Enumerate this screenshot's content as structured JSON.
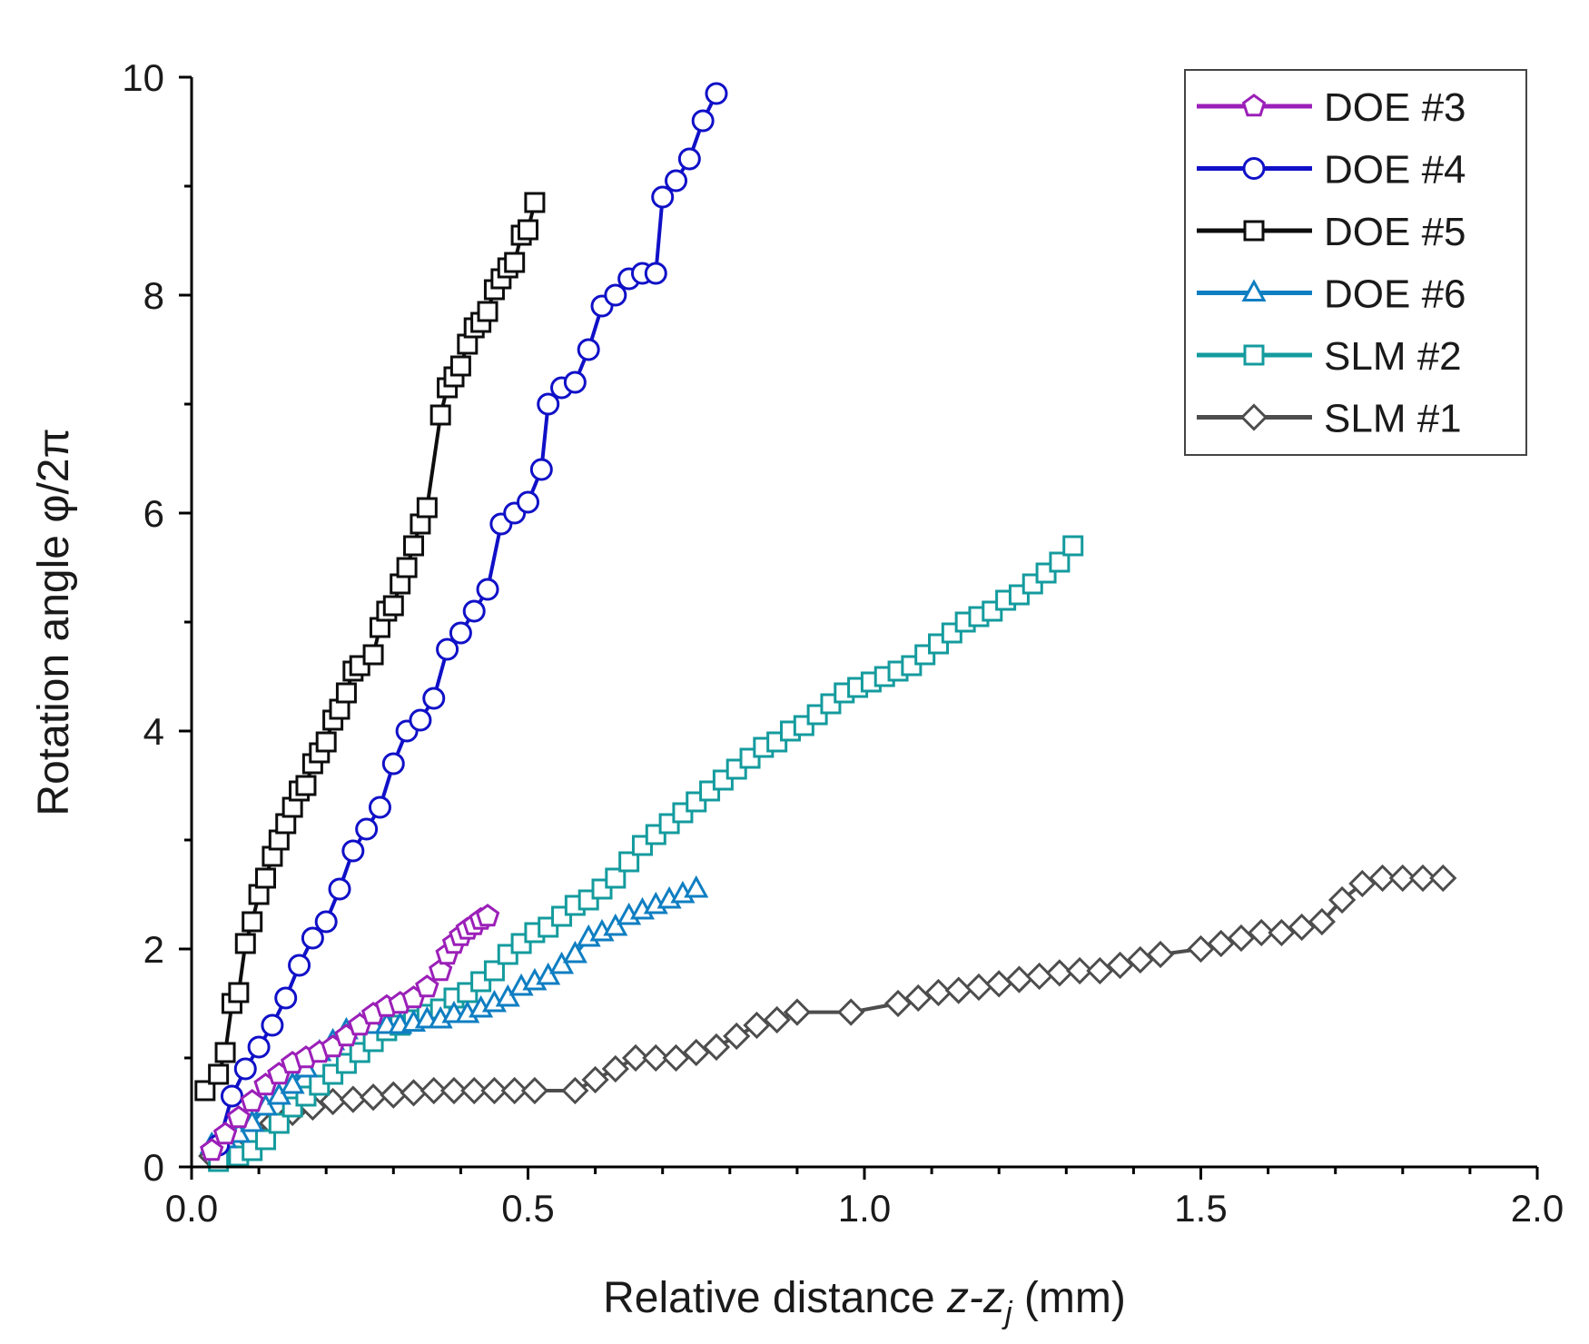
{
  "chart_data": {
    "type": "line",
    "title": "",
    "xlabel": "Relative distance z-z_j (mm)",
    "xlabel_parts": {
      "prefix": "Relative distance ",
      "italic": "z-z",
      "subscript": "j",
      "suffix": " (mm)"
    },
    "ylabel": "Rotation angle φ/2π",
    "xlim": [
      0,
      2.0
    ],
    "ylim": [
      0,
      10
    ],
    "x_ticks": [
      "0.0",
      "0.5",
      "1.0",
      "1.5",
      "2.0"
    ],
    "y_ticks": [
      "0",
      "2",
      "4",
      "6",
      "8",
      "10"
    ],
    "grid": false,
    "legend_position": "top-right",
    "series": [
      {
        "name": "DOE #3",
        "color": "#9b1fb8",
        "marker": "pentagon",
        "x": [
          0.03,
          0.05,
          0.07,
          0.09,
          0.11,
          0.13,
          0.15,
          0.17,
          0.19,
          0.21,
          0.23,
          0.25,
          0.27,
          0.29,
          0.31,
          0.33,
          0.35,
          0.37,
          0.38,
          0.39,
          0.4,
          0.41,
          0.42,
          0.43,
          0.44
        ],
        "y": [
          0.15,
          0.3,
          0.45,
          0.6,
          0.75,
          0.85,
          0.95,
          1.0,
          1.05,
          1.1,
          1.2,
          1.3,
          1.4,
          1.47,
          1.5,
          1.55,
          1.65,
          1.8,
          1.95,
          2.05,
          2.12,
          2.18,
          2.22,
          2.27,
          2.3
        ]
      },
      {
        "name": "DOE #4",
        "color": "#1010c8",
        "marker": "circle",
        "x": [
          0.04,
          0.06,
          0.08,
          0.1,
          0.12,
          0.14,
          0.16,
          0.18,
          0.2,
          0.22,
          0.24,
          0.26,
          0.28,
          0.3,
          0.32,
          0.34,
          0.36,
          0.38,
          0.4,
          0.42,
          0.44,
          0.46,
          0.48,
          0.5,
          0.52,
          0.53,
          0.55,
          0.57,
          0.59,
          0.61,
          0.63,
          0.65,
          0.67,
          0.69,
          0.7,
          0.72,
          0.74,
          0.76,
          0.78
        ],
        "y": [
          0.2,
          0.65,
          0.9,
          1.1,
          1.3,
          1.55,
          1.85,
          2.1,
          2.25,
          2.55,
          2.9,
          3.1,
          3.3,
          3.7,
          4.0,
          4.1,
          4.3,
          4.75,
          4.9,
          5.1,
          5.3,
          5.9,
          6.0,
          6.1,
          6.4,
          7.0,
          7.15,
          7.2,
          7.5,
          7.9,
          8.0,
          8.15,
          8.2,
          8.2,
          8.9,
          9.05,
          9.25,
          9.6,
          9.85
        ]
      },
      {
        "name": "DOE #5",
        "color": "#0d0d0d",
        "marker": "square",
        "x": [
          0.02,
          0.04,
          0.05,
          0.06,
          0.07,
          0.08,
          0.09,
          0.1,
          0.11,
          0.12,
          0.13,
          0.14,
          0.15,
          0.16,
          0.17,
          0.18,
          0.19,
          0.2,
          0.21,
          0.22,
          0.23,
          0.24,
          0.25,
          0.27,
          0.28,
          0.29,
          0.3,
          0.31,
          0.32,
          0.33,
          0.34,
          0.35,
          0.37,
          0.38,
          0.39,
          0.4,
          0.41,
          0.42,
          0.43,
          0.44,
          0.45,
          0.46,
          0.47,
          0.48,
          0.49,
          0.5,
          0.51
        ],
        "y": [
          0.7,
          0.85,
          1.05,
          1.5,
          1.6,
          2.05,
          2.25,
          2.5,
          2.65,
          2.85,
          3.0,
          3.15,
          3.3,
          3.45,
          3.5,
          3.7,
          3.8,
          3.9,
          4.1,
          4.2,
          4.35,
          4.55,
          4.6,
          4.7,
          4.95,
          5.1,
          5.15,
          5.35,
          5.5,
          5.7,
          5.9,
          6.05,
          6.9,
          7.15,
          7.25,
          7.35,
          7.55,
          7.7,
          7.75,
          7.85,
          8.05,
          8.15,
          8.25,
          8.3,
          8.55,
          8.6,
          8.85
        ]
      },
      {
        "name": "DOE #6",
        "color": "#0f7ec2",
        "marker": "triangle",
        "x": [
          0.03,
          0.05,
          0.07,
          0.09,
          0.11,
          0.13,
          0.15,
          0.17,
          0.19,
          0.21,
          0.23,
          0.25,
          0.27,
          0.29,
          0.31,
          0.33,
          0.35,
          0.37,
          0.39,
          0.41,
          0.43,
          0.45,
          0.47,
          0.49,
          0.51,
          0.53,
          0.55,
          0.57,
          0.59,
          0.61,
          0.63,
          0.65,
          0.67,
          0.69,
          0.71,
          0.73,
          0.75
        ],
        "y": [
          0.2,
          0.25,
          0.3,
          0.4,
          0.55,
          0.65,
          0.75,
          0.9,
          1.05,
          1.15,
          1.25,
          1.3,
          1.3,
          1.3,
          1.3,
          1.32,
          1.35,
          1.35,
          1.4,
          1.4,
          1.45,
          1.5,
          1.55,
          1.65,
          1.7,
          1.75,
          1.85,
          1.95,
          2.1,
          2.15,
          2.2,
          2.3,
          2.35,
          2.4,
          2.45,
          2.5,
          2.55
        ]
      },
      {
        "name": "SLM #2",
        "color": "#149b9e",
        "marker": "square",
        "x": [
          0.04,
          0.07,
          0.09,
          0.11,
          0.13,
          0.15,
          0.17,
          0.19,
          0.21,
          0.23,
          0.25,
          0.27,
          0.29,
          0.31,
          0.33,
          0.35,
          0.37,
          0.39,
          0.41,
          0.43,
          0.45,
          0.47,
          0.49,
          0.51,
          0.53,
          0.55,
          0.57,
          0.59,
          0.61,
          0.63,
          0.65,
          0.67,
          0.69,
          0.71,
          0.73,
          0.75,
          0.77,
          0.79,
          0.81,
          0.83,
          0.85,
          0.87,
          0.89,
          0.91,
          0.93,
          0.95,
          0.97,
          0.99,
          1.01,
          1.03,
          1.05,
          1.07,
          1.09,
          1.11,
          1.13,
          1.15,
          1.17,
          1.19,
          1.21,
          1.23,
          1.25,
          1.27,
          1.29,
          1.31
        ],
        "y": [
          0.05,
          0.1,
          0.15,
          0.25,
          0.4,
          0.55,
          0.65,
          0.75,
          0.85,
          0.95,
          1.05,
          1.15,
          1.25,
          1.3,
          1.35,
          1.4,
          1.45,
          1.55,
          1.6,
          1.7,
          1.8,
          1.95,
          2.05,
          2.15,
          2.2,
          2.3,
          2.4,
          2.45,
          2.55,
          2.65,
          2.8,
          2.95,
          3.05,
          3.15,
          3.25,
          3.35,
          3.45,
          3.55,
          3.65,
          3.75,
          3.85,
          3.9,
          4.0,
          4.05,
          4.15,
          4.25,
          4.35,
          4.4,
          4.45,
          4.5,
          4.55,
          4.6,
          4.7,
          4.8,
          4.9,
          5.0,
          5.05,
          5.1,
          5.2,
          5.25,
          5.35,
          5.45,
          5.55,
          5.7
        ]
      },
      {
        "name": "SLM #1",
        "color": "#4d4d4d",
        "marker": "diamond",
        "x": [
          0.03,
          0.06,
          0.09,
          0.12,
          0.15,
          0.18,
          0.21,
          0.24,
          0.27,
          0.3,
          0.33,
          0.36,
          0.39,
          0.42,
          0.45,
          0.48,
          0.51,
          0.57,
          0.6,
          0.63,
          0.66,
          0.69,
          0.72,
          0.75,
          0.78,
          0.81,
          0.84,
          0.87,
          0.9,
          0.98,
          1.05,
          1.08,
          1.11,
          1.14,
          1.17,
          1.2,
          1.23,
          1.26,
          1.29,
          1.32,
          1.35,
          1.38,
          1.41,
          1.44,
          1.5,
          1.53,
          1.56,
          1.59,
          1.62,
          1.65,
          1.68,
          1.71,
          1.74,
          1.77,
          1.8,
          1.83,
          1.86
        ],
        "y": [
          0.1,
          0.2,
          0.3,
          0.4,
          0.5,
          0.55,
          0.6,
          0.62,
          0.64,
          0.66,
          0.68,
          0.7,
          0.7,
          0.7,
          0.7,
          0.7,
          0.7,
          0.7,
          0.8,
          0.9,
          1.0,
          1.0,
          1.0,
          1.05,
          1.1,
          1.2,
          1.3,
          1.35,
          1.42,
          1.42,
          1.5,
          1.55,
          1.6,
          1.62,
          1.65,
          1.68,
          1.72,
          1.75,
          1.78,
          1.8,
          1.8,
          1.85,
          1.9,
          1.95,
          2.0,
          2.05,
          2.1,
          2.15,
          2.15,
          2.2,
          2.25,
          2.45,
          2.6,
          2.65,
          2.65,
          2.65,
          2.65
        ]
      }
    ]
  }
}
